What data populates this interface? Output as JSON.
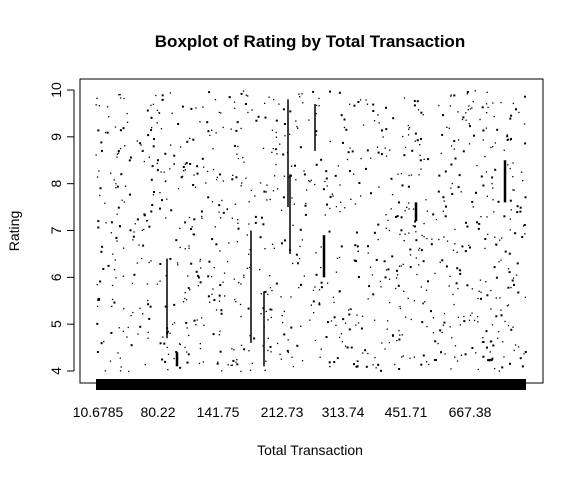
{
  "chart_data": {
    "type": "boxplot",
    "title": "Boxplot of Rating by Total Transaction",
    "xlabel": "Total Transaction",
    "ylabel": "Rating",
    "ylim": [
      4,
      10
    ],
    "yticks": [
      4,
      5,
      6,
      7,
      8,
      9,
      10
    ],
    "xtick_labels": [
      "10.6785",
      "80.22",
      "141.75",
      "212.73",
      "313.74",
      "451.71",
      "667.38"
    ],
    "grid": false,
    "legend": "none",
    "visible_boxes": [
      {
        "low": 4.7,
        "high": 6.4
      },
      {
        "low": 4.1,
        "high": 4.4
      },
      {
        "low": 4.6,
        "high": 7.0
      },
      {
        "low": 4.1,
        "high": 5.7
      },
      {
        "low": 7.5,
        "high": 9.8
      },
      {
        "low": 6.5,
        "high": 8.2
      },
      {
        "low": 8.7,
        "high": 9.7
      },
      {
        "low": 6.0,
        "high": 6.9
      },
      {
        "low": 7.2,
        "high": 7.6
      },
      {
        "low": 7.6,
        "high": 8.5
      }
    ]
  },
  "colors": {
    "ink": "#000000",
    "background": "#ffffff"
  }
}
